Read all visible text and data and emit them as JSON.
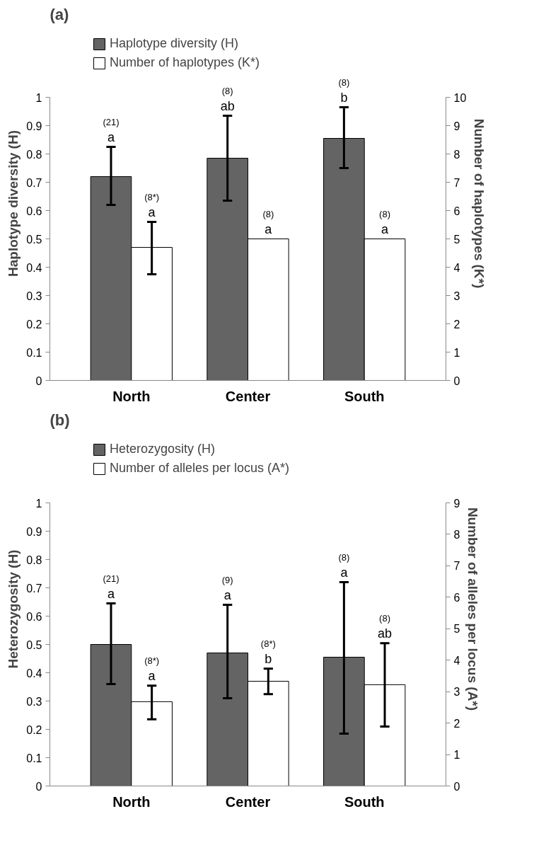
{
  "chart_data": [
    {
      "type": "bar",
      "title": "(a)",
      "categories": [
        "North",
        "Center",
        "South"
      ],
      "ylabel": "Haplotype diversity (H)",
      "y2label": "Number of haplotypes (K*)",
      "ylim": [
        0,
        1
      ],
      "yticks": [
        0,
        0.1,
        0.2,
        0.3,
        0.4,
        0.5,
        0.6,
        0.7,
        0.8,
        0.9,
        1
      ],
      "y2lim": [
        0,
        10
      ],
      "y2ticks": [
        0,
        1,
        2,
        3,
        4,
        5,
        6,
        7,
        8,
        9,
        10
      ],
      "legend": "top",
      "grid": false,
      "series": [
        {
          "name": "Haplotype diversity (H)",
          "color": "#646464",
          "values": [
            0.72,
            0.785,
            0.855
          ],
          "errors": [
            [
              0.62,
              0.825
            ],
            [
              0.635,
              0.935
            ],
            [
              0.75,
              0.965
            ]
          ]
        },
        {
          "name": "Number of haplotypes (K*)",
          "color": "#ffffff",
          "axis": "y2",
          "values": [
            4.7,
            5,
            5
          ],
          "errors": [
            [
              3.75,
              5.6
            ],
            null,
            null
          ]
        }
      ],
      "annotations": [
        "(21)\na",
        "(8*)\na",
        "(8)\nab",
        "(8)\na",
        "(8)\nb",
        "(8)\na"
      ]
    },
    {
      "type": "bar",
      "title": "(b)",
      "categories": [
        "North",
        "Center",
        "South"
      ],
      "ylabel": "Heterozygosity (H)",
      "y2label": "Number of alleles per locus (A*)",
      "ylim": [
        0,
        1
      ],
      "yticks": [
        0,
        0.1,
        0.2,
        0.3,
        0.4,
        0.5,
        0.6,
        0.7,
        0.8,
        0.9,
        1
      ],
      "y2lim": [
        0,
        9
      ],
      "y2ticks": [
        0,
        1,
        2,
        3,
        4,
        5,
        6,
        7,
        8,
        9
      ],
      "legend": "top",
      "grid": false,
      "series": [
        {
          "name": "Heterozygosity (H)",
          "color": "#646464",
          "values": [
            0.5,
            0.47,
            0.455
          ],
          "errors": [
            [
              0.36,
              0.645
            ],
            [
              0.31,
              0.64
            ],
            [
              0.185,
              0.72
            ]
          ]
        },
        {
          "name": "Number of alleles per locus (A*)",
          "color": "#ffffff",
          "axis": "y2",
          "values": [
            2.68,
            3.33,
            3.22
          ],
          "errors": [
            [
              2.12,
              3.19
            ],
            [
              2.92,
              3.73
            ],
            [
              1.89,
              4.54
            ]
          ]
        }
      ],
      "annotations": [
        "(21)\na",
        "(8*)\na",
        "(9)\na",
        "(8*)\nb",
        "(8)\na",
        "(8)\nab"
      ]
    }
  ]
}
